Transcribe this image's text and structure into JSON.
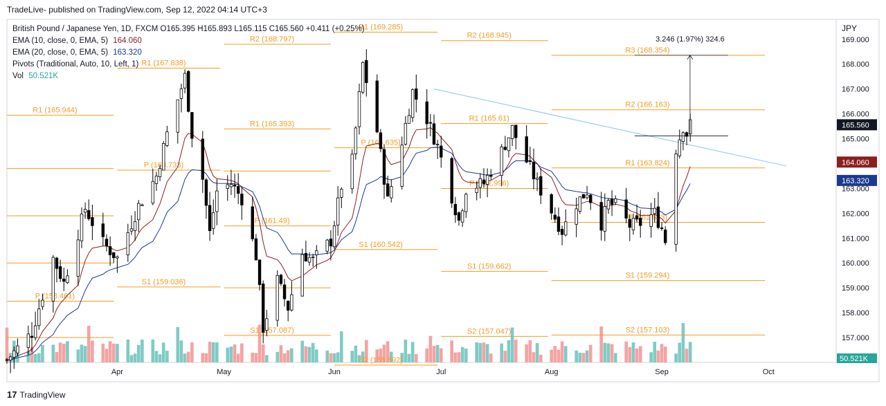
{
  "header": {
    "publisher": "TradeLive- published on TradingView.com, Sep 12, 2022 04:14 UTC+3"
  },
  "footer": {
    "brand": "TradingView",
    "logo_glyph": "17"
  },
  "legend": {
    "symbol": "British Pound / Japanese Yen, 1D, FXCM",
    "ohlc": {
      "O": "165.395",
      "H": "165.893",
      "L": "165.115",
      "C": "165.560",
      "change": "+0.411 (+0.25%)"
    },
    "ema10": {
      "label": "EMA (10, close, 0, EMA, 5)",
      "value": "164.060",
      "color": "#8b1e1e"
    },
    "ema20": {
      "label": "EMA (20, close, 0, EMA, 5)",
      "value": "163.320",
      "color": "#1a3a8f"
    },
    "pivots": {
      "label": "Pivots (Traditional, Auto, 10, Left, 1)"
    },
    "vol": {
      "label": "Vol",
      "value": "50.521K",
      "color": "#26a69a"
    }
  },
  "colors": {
    "up": "#ffffff",
    "down": "#000000",
    "pivot": "#f59b22",
    "trend": "#8ec1e8",
    "vol_up": "#80cbc4",
    "vol_down": "#f4a3a3"
  },
  "chart_data": {
    "type": "candlestick",
    "currency": "JPY",
    "yticks": [
      "156.000",
      "157.000",
      "158.000",
      "159.000",
      "160.000",
      "161.000",
      "162.000",
      "163.000",
      "164.000",
      "165.000",
      "166.000",
      "167.000",
      "168.000",
      "169.000"
    ],
    "ylim": [
      156.0,
      169.8
    ],
    "xticks": [
      {
        "label": "Apr",
        "date": "2022-04-01"
      },
      {
        "label": "May",
        "date": "2022-05-01"
      },
      {
        "label": "Jun",
        "date": "2022-06-01"
      },
      {
        "label": "Jul",
        "date": "2022-07-01"
      },
      {
        "label": "Aug",
        "date": "2022-08-01"
      },
      {
        "label": "Sep",
        "date": "2022-09-01"
      },
      {
        "label": "Oct",
        "date": "2022-10-01"
      }
    ],
    "last_price": {
      "value": "165.560",
      "label": "165.560"
    },
    "ema10_last": {
      "value": 164.06,
      "label": "164.060"
    },
    "ema20_last": {
      "value": 163.32,
      "label": "163.320"
    },
    "vol_last": {
      "label": "50.521K"
    },
    "measure": {
      "label": "3.246 (1.97%) 324.6",
      "from": 165.11,
      "to": 168.356,
      "date": "2022-09-07"
    },
    "trendline": {
      "start": {
        "date": "2022-06-29",
        "price": 167.0
      },
      "end": {
        "date": "2022-10-06",
        "price": 163.9
      }
    },
    "pivot_levels": [
      {
        "label": "R1 (165.944)",
        "value": 165.944,
        "from": "2022-03-01",
        "to": "2022-03-31"
      },
      {
        "label": "P (158.461)",
        "value": 158.461,
        "from": "2022-03-01",
        "to": "2022-03-31"
      },
      {
        "label": "",
        "value": 163.8,
        "from": "2022-03-01",
        "to": "2022-03-31"
      },
      {
        "label": "",
        "value": 161.9,
        "from": "2022-03-01",
        "to": "2022-03-31"
      },
      {
        "label": "",
        "value": 160.0,
        "from": "2022-03-01",
        "to": "2022-03-31"
      },
      {
        "label": "",
        "value": 157.0,
        "from": "2022-03-01",
        "to": "2022-03-31"
      },
      {
        "label": "R1 (167.838)",
        "value": 167.838,
        "from": "2022-04-01",
        "to": "2022-04-30"
      },
      {
        "label": "P (163.733)",
        "value": 163.733,
        "from": "2022-04-01",
        "to": "2022-04-30"
      },
      {
        "label": "S1 (159.036)",
        "value": 159.036,
        "from": "2022-04-01",
        "to": "2022-04-30"
      },
      {
        "label": "R2 (168.797)",
        "value": 168.797,
        "from": "2022-05-01",
        "to": "2022-05-31"
      },
      {
        "label": "R1 (165.393)",
        "value": 165.393,
        "from": "2022-05-01",
        "to": "2022-05-31"
      },
      {
        "label": "P (161.49)",
        "value": 161.49,
        "from": "2022-05-01",
        "to": "2022-05-31"
      },
      {
        "label": "",
        "value": 163.7,
        "from": "2022-05-01",
        "to": "2022-05-31"
      },
      {
        "label": "",
        "value": 159.0,
        "from": "2022-05-01",
        "to": "2022-05-31"
      },
      {
        "label": "S1 (157.087)",
        "value": 157.087,
        "from": "2022-05-01",
        "to": "2022-05-31"
      },
      {
        "label": "R1 (169.285)",
        "value": 169.285,
        "from": "2022-06-01",
        "to": "2022-06-30"
      },
      {
        "label": "P (164.635)",
        "value": 164.635,
        "from": "2022-06-01",
        "to": "2022-06-30"
      },
      {
        "label": "S1 (160.542)",
        "value": 160.542,
        "from": "2022-06-01",
        "to": "2022-06-30"
      },
      {
        "label": "S2 (155.892)",
        "value": 155.892,
        "from": "2022-06-01",
        "to": "2022-06-30"
      },
      {
        "label": "R2 (168.945)",
        "value": 168.945,
        "from": "2022-07-01",
        "to": "2022-07-31"
      },
      {
        "label": "R1 (165.61)",
        "value": 165.61,
        "from": "2022-07-01",
        "to": "2022-07-31"
      },
      {
        "label": "P (162.996)",
        "value": 162.996,
        "from": "2022-07-01",
        "to": "2022-07-31"
      },
      {
        "label": "S1 (159.662)",
        "value": 159.662,
        "from": "2022-07-01",
        "to": "2022-07-31"
      },
      {
        "label": "S2 (157.047)",
        "value": 157.047,
        "from": "2022-07-01",
        "to": "2022-07-31"
      },
      {
        "label": "R3 (168.354)",
        "value": 168.354,
        "from": "2022-08-01",
        "to": "2022-09-30"
      },
      {
        "label": "R2 (166.163)",
        "value": 166.163,
        "from": "2022-08-01",
        "to": "2022-09-30"
      },
      {
        "label": "R1 (163.824)",
        "value": 163.824,
        "from": "2022-08-01",
        "to": "2022-09-30"
      },
      {
        "label": "P (161.633)",
        "value": 161.633,
        "from": "2022-08-01",
        "to": "2022-09-30"
      },
      {
        "label": "S1 (159.294)",
        "value": 159.294,
        "from": "2022-08-01",
        "to": "2022-09-30"
      },
      {
        "label": "S2 (157.103)",
        "value": 157.103,
        "from": "2022-08-01",
        "to": "2022-09-30"
      }
    ],
    "anchors": [
      {
        "date": "2022-03-01",
        "price": 156.1
      },
      {
        "date": "2022-03-08",
        "price": 157.2
      },
      {
        "date": "2022-03-14",
        "price": 160.2
      },
      {
        "date": "2022-03-17",
        "price": 159.2
      },
      {
        "date": "2022-03-23",
        "price": 162.2
      },
      {
        "date": "2022-03-28",
        "price": 160.8
      },
      {
        "date": "2022-04-01",
        "price": 160.2
      },
      {
        "date": "2022-04-07",
        "price": 162.3
      },
      {
        "date": "2022-04-12",
        "price": 163.5
      },
      {
        "date": "2022-04-15",
        "price": 165.2
      },
      {
        "date": "2022-04-20",
        "price": 167.5
      },
      {
        "date": "2022-04-22",
        "price": 165.2
      },
      {
        "date": "2022-04-25",
        "price": 163.4
      },
      {
        "date": "2022-04-27",
        "price": 161.2
      },
      {
        "date": "2022-04-29",
        "price": 162.9
      },
      {
        "date": "2022-05-03",
        "price": 163.2
      },
      {
        "date": "2022-05-06",
        "price": 162.6
      },
      {
        "date": "2022-05-10",
        "price": 160.3
      },
      {
        "date": "2022-05-12",
        "price": 157.4
      },
      {
        "date": "2022-05-16",
        "price": 159.3
      },
      {
        "date": "2022-05-19",
        "price": 158.2
      },
      {
        "date": "2022-05-23",
        "price": 160.4
      },
      {
        "date": "2022-05-26",
        "price": 160.1
      },
      {
        "date": "2022-05-31",
        "price": 160.9
      },
      {
        "date": "2022-06-03",
        "price": 163.1
      },
      {
        "date": "2022-06-06",
        "price": 164.1
      },
      {
        "date": "2022-06-09",
        "price": 168.0
      },
      {
        "date": "2022-06-13",
        "price": 165.3
      },
      {
        "date": "2022-06-16",
        "price": 162.5
      },
      {
        "date": "2022-06-20",
        "price": 164.9
      },
      {
        "date": "2022-06-23",
        "price": 166.9
      },
      {
        "date": "2022-06-27",
        "price": 165.8
      },
      {
        "date": "2022-06-30",
        "price": 164.7
      },
      {
        "date": "2022-07-06",
        "price": 161.7
      },
      {
        "date": "2022-07-08",
        "price": 163.0
      },
      {
        "date": "2022-07-13",
        "price": 163.2
      },
      {
        "date": "2022-07-18",
        "price": 164.5
      },
      {
        "date": "2022-07-21",
        "price": 165.4
      },
      {
        "date": "2022-07-25",
        "price": 164.1
      },
      {
        "date": "2022-07-28",
        "price": 163.2
      },
      {
        "date": "2022-08-01",
        "price": 162.1
      },
      {
        "date": "2022-08-04",
        "price": 161.3
      },
      {
        "date": "2022-08-08",
        "price": 162.4
      },
      {
        "date": "2022-08-11",
        "price": 162.9
      },
      {
        "date": "2022-08-15",
        "price": 161.6
      },
      {
        "date": "2022-08-17",
        "price": 162.4
      },
      {
        "date": "2022-08-19",
        "price": 162.3
      },
      {
        "date": "2022-08-23",
        "price": 161.5
      },
      {
        "date": "2022-08-26",
        "price": 161.6
      },
      {
        "date": "2022-08-30",
        "price": 162.0
      },
      {
        "date": "2022-09-01",
        "price": 161.4
      },
      {
        "date": "2022-09-02",
        "price": 160.9
      },
      {
        "date": "2022-09-05",
        "price": 164.6
      },
      {
        "date": "2022-09-07",
        "price": 165.5
      },
      {
        "date": "2022-09-08",
        "price": 165.2
      },
      {
        "date": "2022-09-09",
        "price": 165.56
      }
    ]
  }
}
